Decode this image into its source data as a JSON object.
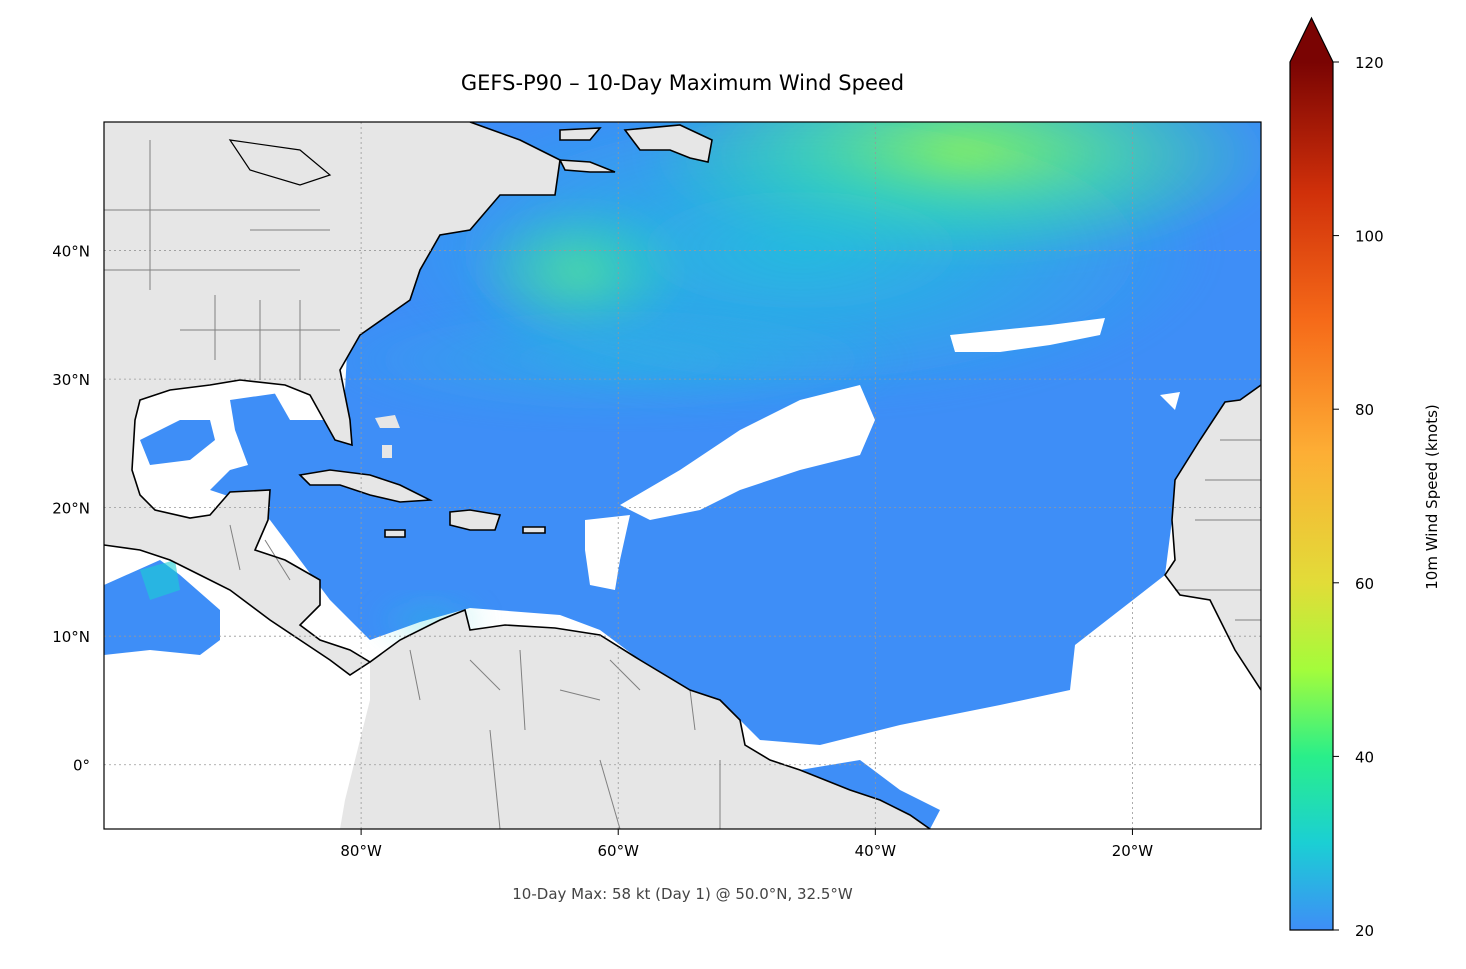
{
  "title": "GEFS-P90 – 10-Day Maximum Wind Speed",
  "footnote": "10-Day Max: 58 kt (Day 1) @ 50.0°N, 32.5°W",
  "map": {
    "extent": {
      "lon_min": -100,
      "lon_max": -10,
      "lat_min": -5,
      "lat_max": 50
    },
    "lon_ticks": [
      {
        "lon": -80,
        "label": "80°W"
      },
      {
        "lon": -60,
        "label": "60°W"
      },
      {
        "lon": -40,
        "label": "40°W"
      },
      {
        "lon": -20,
        "label": "20°W"
      }
    ],
    "lat_ticks": [
      {
        "lat": 40,
        "label": "40°N"
      },
      {
        "lat": 30,
        "label": "30°N"
      },
      {
        "lat": 20,
        "label": "20°N"
      },
      {
        "lat": 10,
        "label": "10°N"
      },
      {
        "lat": 0,
        "label": "0°"
      }
    ],
    "land_color": "#e6e6e6",
    "coast_color": "#000000",
    "border_color": "#808080"
  },
  "colorbar": {
    "label": "10m Wind Speed (knots)",
    "min": 20,
    "max": 120,
    "extend": "max",
    "extend_color": "#7a0403",
    "ticks": [
      {
        "value": 20,
        "label": "20"
      },
      {
        "value": 40,
        "label": "40"
      },
      {
        "value": 60,
        "label": "60"
      },
      {
        "value": 80,
        "label": "80"
      },
      {
        "value": 100,
        "label": "100"
      },
      {
        "value": 120,
        "label": "120"
      }
    ],
    "stops": [
      {
        "value": 20,
        "color": "#3e8ef7"
      },
      {
        "value": 30,
        "color": "#1bcfd4"
      },
      {
        "value": 40,
        "color": "#29ef8a"
      },
      {
        "value": 50,
        "color": "#a4fc3b"
      },
      {
        "value": 60,
        "color": "#e2dc38"
      },
      {
        "value": 75,
        "color": "#fdae35"
      },
      {
        "value": 90,
        "color": "#f66b19"
      },
      {
        "value": 105,
        "color": "#d0300a"
      },
      {
        "value": 120,
        "color": "#7a0403"
      }
    ]
  },
  "chart_data": {
    "type": "heatmap",
    "title": "GEFS-P90 – 10-Day Maximum Wind Speed",
    "variable": "10m Wind Speed (knots)",
    "max_value": {
      "value": 58,
      "unit": "kt",
      "day": 1,
      "lat": 50.0,
      "lon": -32.5
    }
  }
}
